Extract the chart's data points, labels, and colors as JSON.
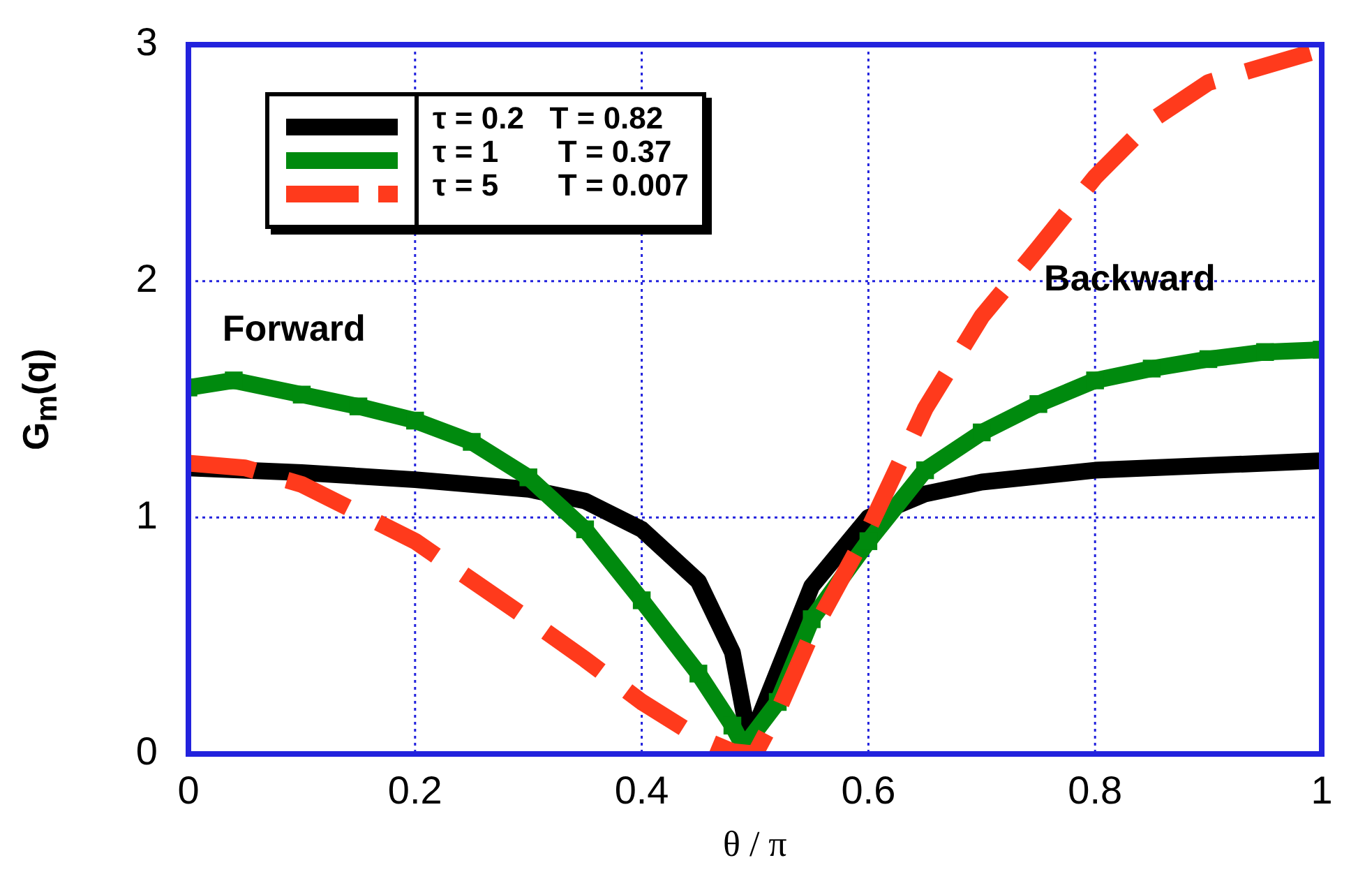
{
  "chart_data": {
    "type": "line",
    "xlabel": "θ / π",
    "ylabel": "G$_{m}$(q)",
    "xlim": [
      0,
      1
    ],
    "xticks": [
      0,
      0.2,
      0.4,
      0.6,
      0.8,
      1
    ],
    "ylim": [
      0,
      3
    ],
    "yticks": [
      0,
      1,
      2,
      3
    ],
    "grid": true,
    "legend": "top left",
    "annotations": [
      "Forward",
      "Backward"
    ],
    "series": [
      {
        "name": "τ = 0.2   T = 0.82",
        "color": "#000000",
        "line_style": "solid",
        "marker": "none",
        "x": [
          0,
          0.1,
          0.2,
          0.3,
          0.35,
          0.4,
          0.45,
          0.48,
          0.495,
          0.52,
          0.55,
          0.6,
          0.65,
          0.7,
          0.8,
          0.9,
          1
        ],
        "values": [
          1.21,
          1.19,
          1.16,
          1.12,
          1.07,
          0.95,
          0.73,
          0.43,
          0.05,
          0.35,
          0.71,
          1.0,
          1.1,
          1.15,
          1.2,
          1.22,
          1.24
        ]
      },
      {
        "name": "τ = 1       T = 0.37",
        "color": "#008a0e",
        "line_style": "solid",
        "marker": "square",
        "x": [
          0,
          0.04,
          0.1,
          0.15,
          0.2,
          0.25,
          0.3,
          0.35,
          0.4,
          0.45,
          0.48,
          0.49,
          0.52,
          0.55,
          0.6,
          0.65,
          0.7,
          0.75,
          0.8,
          0.85,
          0.9,
          0.95,
          1
        ],
        "values": [
          1.55,
          1.58,
          1.52,
          1.47,
          1.41,
          1.32,
          1.17,
          0.95,
          0.65,
          0.34,
          0.12,
          0.03,
          0.22,
          0.57,
          0.9,
          1.2,
          1.36,
          1.48,
          1.58,
          1.63,
          1.67,
          1.7,
          1.71
        ]
      },
      {
        "name": "τ = 5       T = 0.007",
        "color": "#ff3a1c",
        "line_style": "dashed",
        "marker": "none",
        "x": [
          0,
          0.05,
          0.1,
          0.2,
          0.3,
          0.35,
          0.4,
          0.45,
          0.48,
          0.5,
          0.52,
          0.55,
          0.6,
          0.65,
          0.7,
          0.75,
          0.8,
          0.85,
          0.9,
          0.95,
          1
        ],
        "values": [
          1.23,
          1.21,
          1.14,
          0.9,
          0.57,
          0.4,
          0.22,
          0.07,
          0.01,
          0,
          0.18,
          0.51,
          0.95,
          1.46,
          1.85,
          2.14,
          2.44,
          2.68,
          2.84,
          2.91,
          2.98
        ]
      }
    ]
  }
}
